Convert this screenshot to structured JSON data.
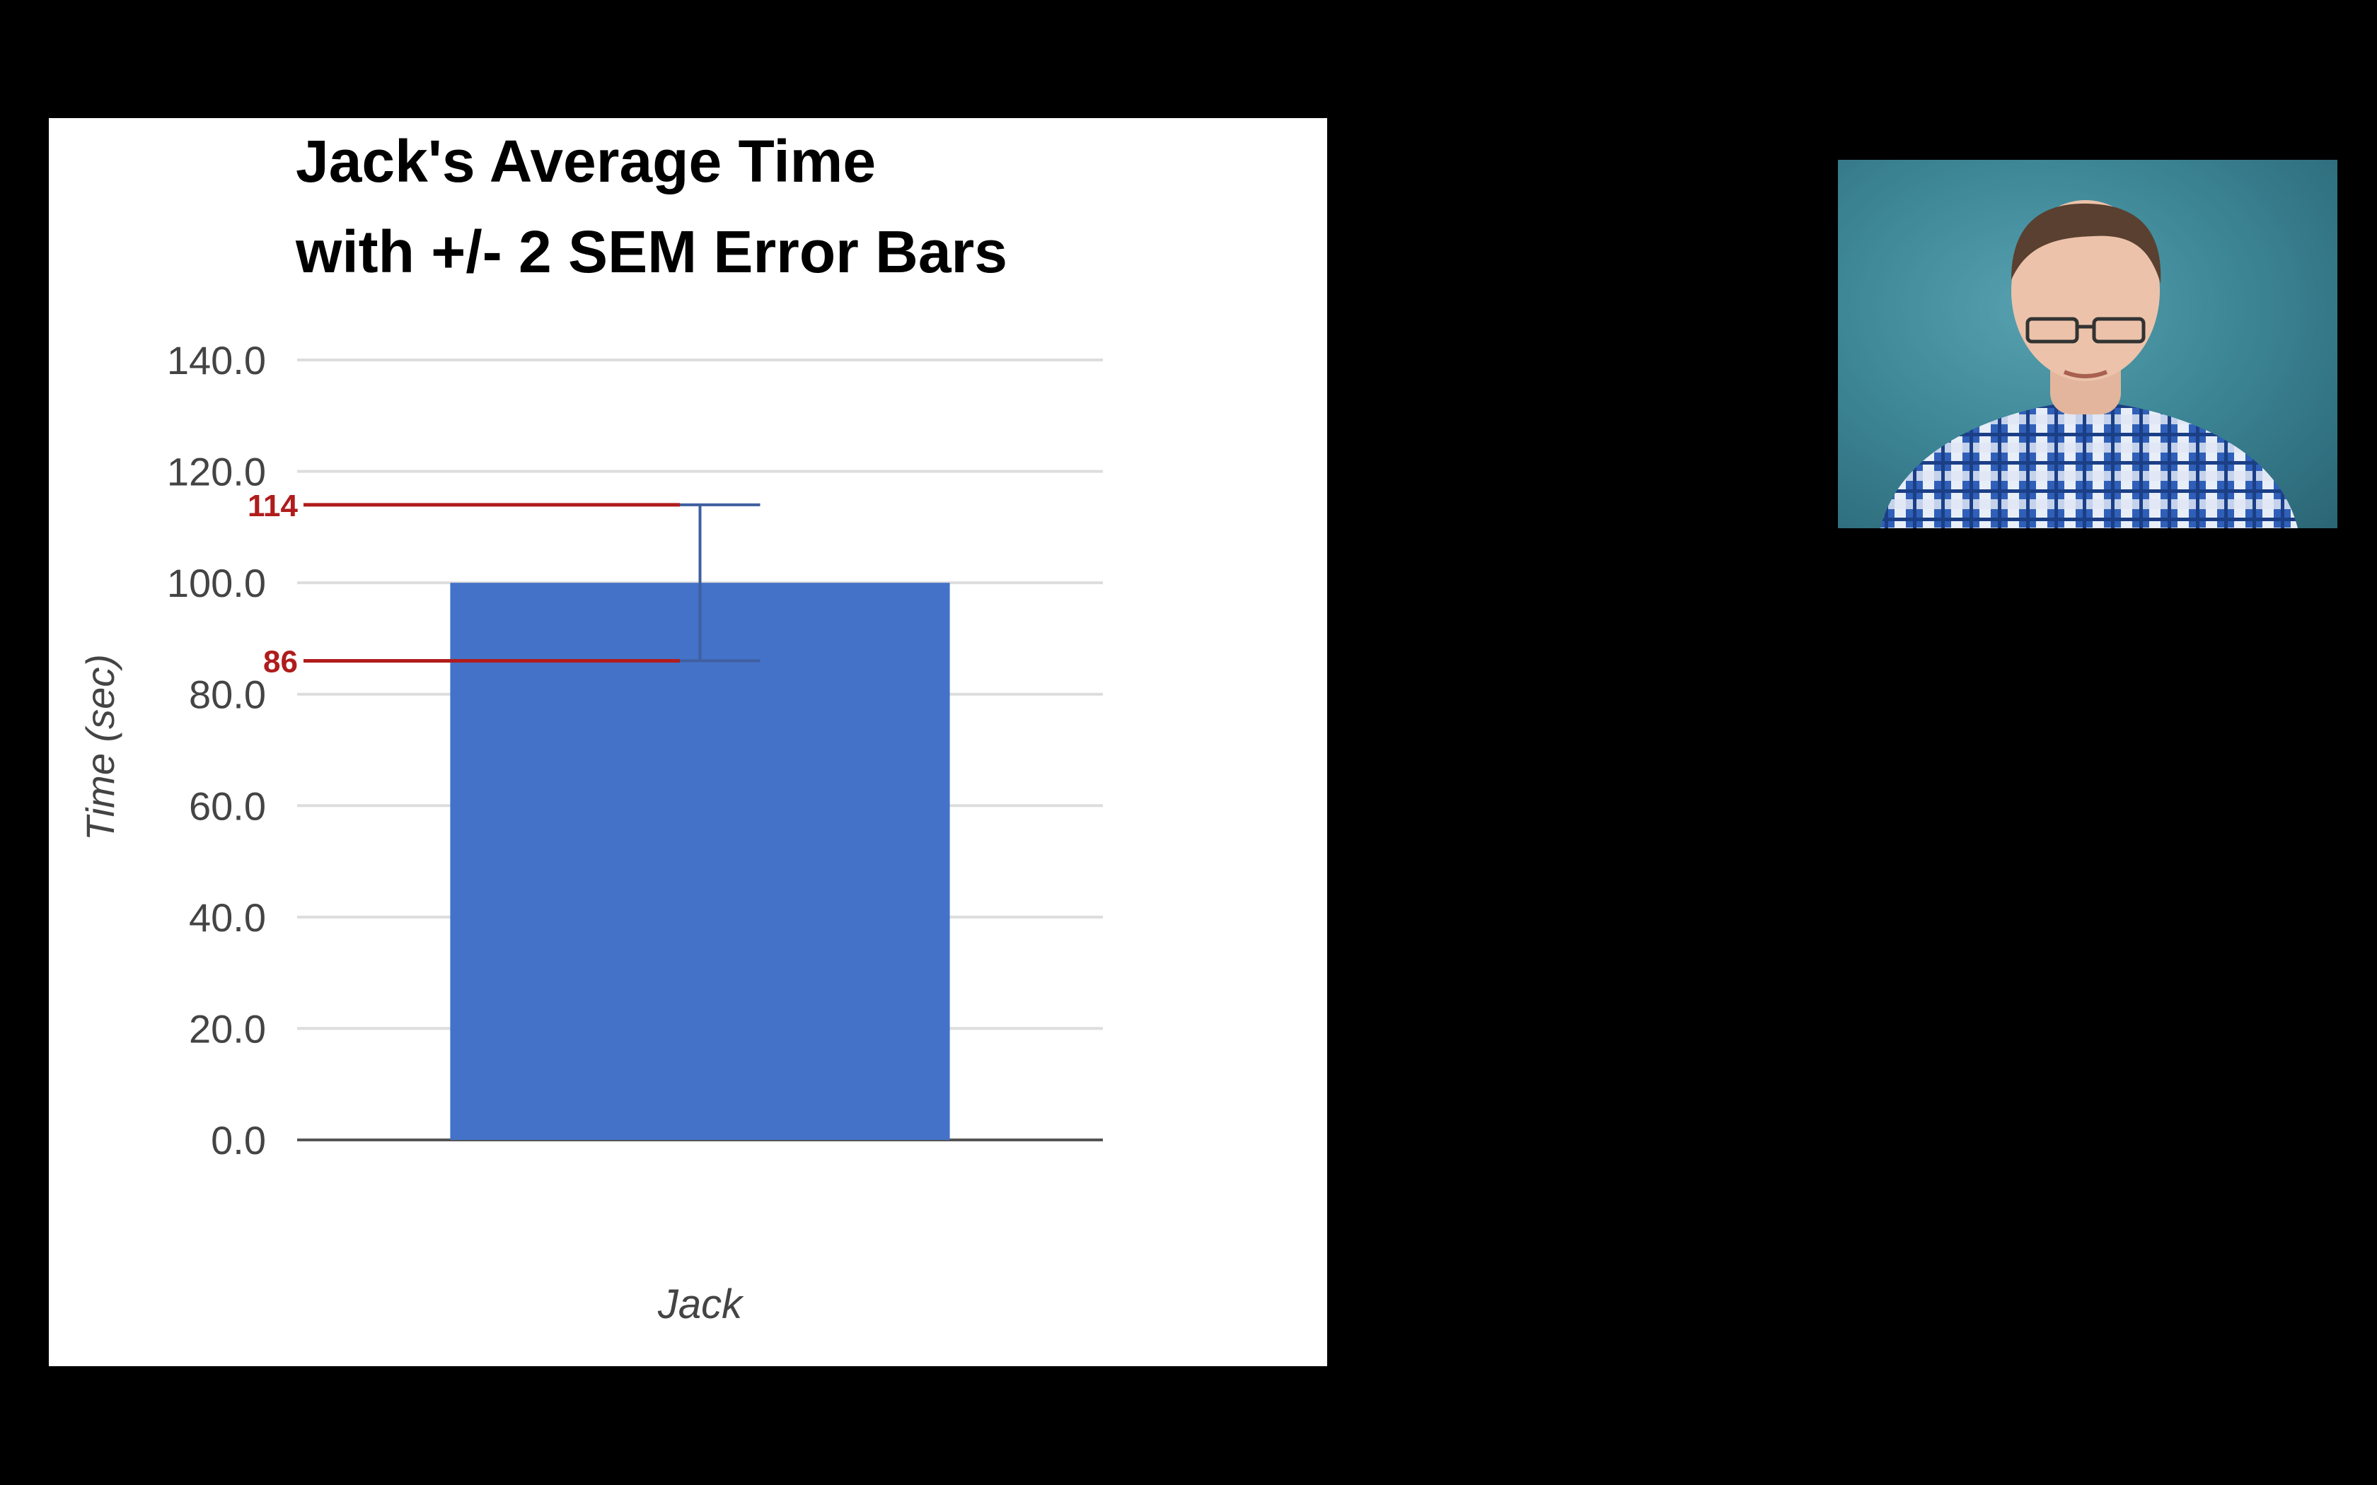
{
  "chart_data": {
    "type": "bar",
    "title": "Jack's Average Time",
    "subtitle": "with +/- 2 SEM Error Bars",
    "ylabel": "Time (sec)",
    "xlabel": "",
    "categories": [
      "Jack"
    ],
    "values": [
      100
    ],
    "error_bars": [
      {
        "lower": 86,
        "upper": 114
      }
    ],
    "ylim": [
      0,
      140
    ],
    "yticks": [
      0,
      20,
      40,
      60,
      80,
      100,
      120,
      140
    ],
    "ytick_labels": [
      "0.0",
      "20.0",
      "40.0",
      "60.0",
      "80.0",
      "100.0",
      "120.0",
      "140.0"
    ],
    "grid": true,
    "legend": "none",
    "annotations": [
      {
        "label": "114",
        "value": 114
      },
      {
        "label": "86",
        "value": 86
      }
    ]
  },
  "colors": {
    "bar": "#4472c9",
    "error_bar": "#3f5f9f",
    "grid": "#dddddd",
    "baseline": "#555555",
    "annotation": "#b01c1c",
    "background": "#ffffff",
    "page": "#000000"
  },
  "webcam": {
    "icon": "presenter-video-icon"
  }
}
